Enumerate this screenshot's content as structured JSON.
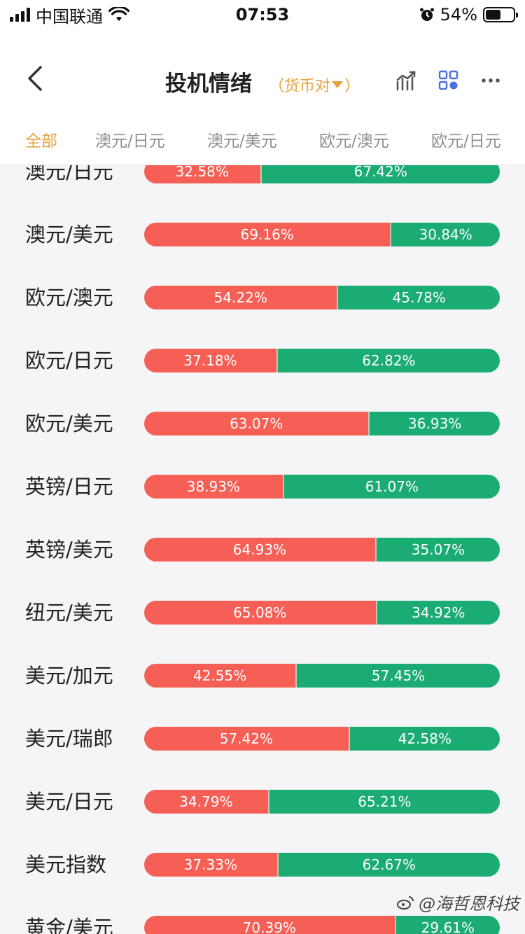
{
  "status_bar": {
    "carrier": "中国联通",
    "time": "07:53",
    "battery_percent": "54%",
    "battery_level": 0.54
  },
  "header": {
    "title": "投机情绪",
    "filter_label": "（货币对",
    "filter_close": "）"
  },
  "tabs": [
    "全部",
    "澳元/日元",
    "澳元/美元",
    "欧元/澳元",
    "欧元/日元"
  ],
  "rows": [
    {
      "name": "澳元/日元",
      "bull": 32.58,
      "bear": 67.42,
      "bull_label": "32.58%",
      "bear_label": "67.42%"
    },
    {
      "name": "澳元/美元",
      "bull": 69.16,
      "bear": 30.84,
      "bull_label": "69.16%",
      "bear_label": "30.84%"
    },
    {
      "name": "欧元/澳元",
      "bull": 54.22,
      "bear": 45.78,
      "bull_label": "54.22%",
      "bear_label": "45.78%"
    },
    {
      "name": "欧元/日元",
      "bull": 37.18,
      "bear": 62.82,
      "bull_label": "37.18%",
      "bear_label": "62.82%"
    },
    {
      "name": "欧元/美元",
      "bull": 63.07,
      "bear": 36.93,
      "bull_label": "63.07%",
      "bear_label": "36.93%"
    },
    {
      "name": "英镑/日元",
      "bull": 38.93,
      "bear": 61.07,
      "bull_label": "38.93%",
      "bear_label": "61.07%"
    },
    {
      "name": "英镑/美元",
      "bull": 64.93,
      "bear": 35.07,
      "bull_label": "64.93%",
      "bear_label": "35.07%"
    },
    {
      "name": "纽元/美元",
      "bull": 65.08,
      "bear": 34.92,
      "bull_label": "65.08%",
      "bear_label": "34.92%"
    },
    {
      "name": "美元/加元",
      "bull": 42.55,
      "bear": 57.45,
      "bull_label": "42.55%",
      "bear_label": "57.45%"
    },
    {
      "name": "美元/瑞郎",
      "bull": 57.42,
      "bear": 42.58,
      "bull_label": "57.42%",
      "bear_label": "42.58%"
    },
    {
      "name": "美元/日元",
      "bull": 34.79,
      "bear": 65.21,
      "bull_label": "34.79%",
      "bear_label": "65.21%"
    },
    {
      "name": "美元指数",
      "bull": 37.33,
      "bear": 62.67,
      "bull_label": "37.33%",
      "bear_label": "62.67%"
    },
    {
      "name": "黄金/美元",
      "bull": 70.39,
      "bear": 29.61,
      "bull_label": "70.39%",
      "bear_label": "29.61%"
    }
  ],
  "watermark": "@海哲恩科技",
  "colors": {
    "accent": "#e8a23c",
    "bull": "#f65f55",
    "bear": "#1aac73",
    "icon_blue": "#4a6fe0"
  }
}
